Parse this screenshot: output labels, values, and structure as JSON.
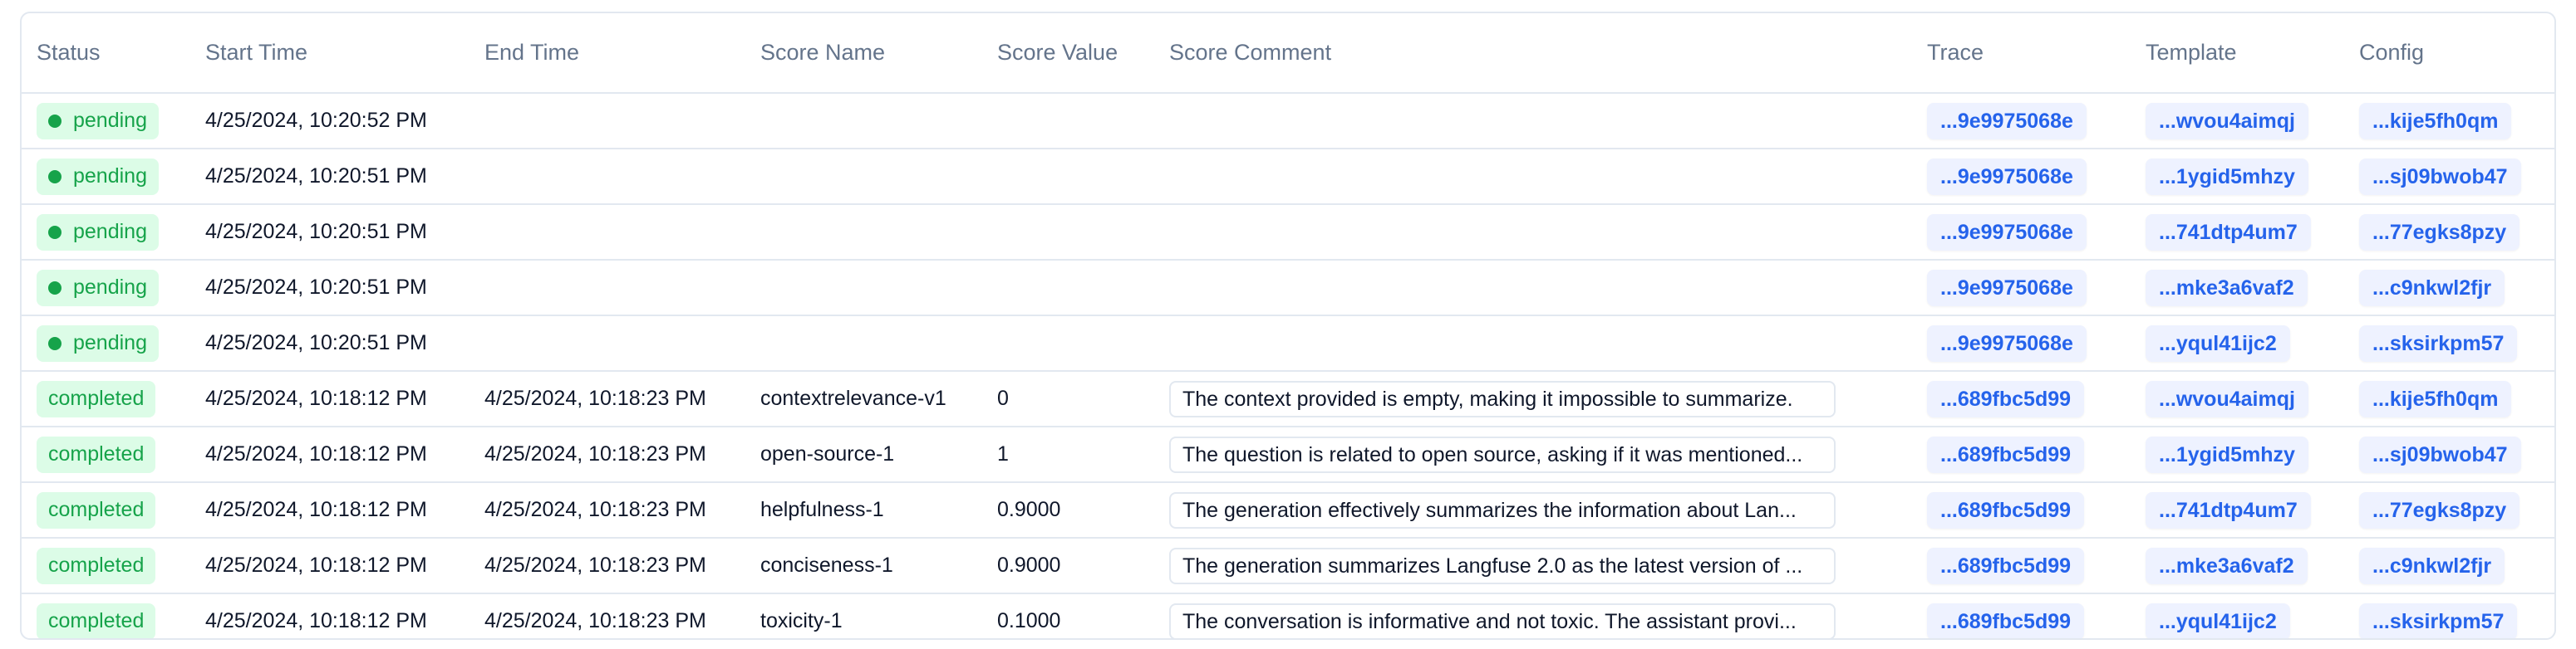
{
  "columns": [
    "Status",
    "Start Time",
    "End Time",
    "Score Name",
    "Score Value",
    "Score Comment",
    "Trace",
    "Template",
    "Config"
  ],
  "colors": {
    "status_green": "#16a34a",
    "badge_bg": "#dcfce7",
    "link_blue": "#2563eb",
    "link_bg": "#eef2ff"
  },
  "rows": [
    {
      "status": "pending",
      "start": "4/25/2024, 10:20:52 PM",
      "end": "",
      "score_name": "",
      "score_value": "",
      "comment": "",
      "trace": "...9e9975068e",
      "template": "...wvou4aimqj",
      "config": "...kije5fh0qm"
    },
    {
      "status": "pending",
      "start": "4/25/2024, 10:20:51 PM",
      "end": "",
      "score_name": "",
      "score_value": "",
      "comment": "",
      "trace": "...9e9975068e",
      "template": "...1ygid5mhzy",
      "config": "...sj09bwob47"
    },
    {
      "status": "pending",
      "start": "4/25/2024, 10:20:51 PM",
      "end": "",
      "score_name": "",
      "score_value": "",
      "comment": "",
      "trace": "...9e9975068e",
      "template": "...741dtp4um7",
      "config": "...77egks8pzy"
    },
    {
      "status": "pending",
      "start": "4/25/2024, 10:20:51 PM",
      "end": "",
      "score_name": "",
      "score_value": "",
      "comment": "",
      "trace": "...9e9975068e",
      "template": "...mke3a6vaf2",
      "config": "...c9nkwl2fjr"
    },
    {
      "status": "pending",
      "start": "4/25/2024, 10:20:51 PM",
      "end": "",
      "score_name": "",
      "score_value": "",
      "comment": "",
      "trace": "...9e9975068e",
      "template": "...yqul41ijc2",
      "config": "...sksirkpm57"
    },
    {
      "status": "completed",
      "start": "4/25/2024, 10:18:12 PM",
      "end": "4/25/2024, 10:18:23 PM",
      "score_name": "contextrelevance-v1",
      "score_value": "0",
      "comment": "The context provided is empty, making it impossible to summarize.",
      "trace": "...689fbc5d99",
      "template": "...wvou4aimqj",
      "config": "...kije5fh0qm"
    },
    {
      "status": "completed",
      "start": "4/25/2024, 10:18:12 PM",
      "end": "4/25/2024, 10:18:23 PM",
      "score_name": "open-source-1",
      "score_value": "1",
      "comment": "The question is related to open source, asking if it was mentioned...",
      "trace": "...689fbc5d99",
      "template": "...1ygid5mhzy",
      "config": "...sj09bwob47"
    },
    {
      "status": "completed",
      "start": "4/25/2024, 10:18:12 PM",
      "end": "4/25/2024, 10:18:23 PM",
      "score_name": "helpfulness-1",
      "score_value": "0.9000",
      "comment": "The generation effectively summarizes the information about Lan...",
      "trace": "...689fbc5d99",
      "template": "...741dtp4um7",
      "config": "...77egks8pzy"
    },
    {
      "status": "completed",
      "start": "4/25/2024, 10:18:12 PM",
      "end": "4/25/2024, 10:18:23 PM",
      "score_name": "conciseness-1",
      "score_value": "0.9000",
      "comment": "The generation summarizes Langfuse 2.0 as the latest version of ...",
      "trace": "...689fbc5d99",
      "template": "...mke3a6vaf2",
      "config": "...c9nkwl2fjr"
    },
    {
      "status": "completed",
      "start": "4/25/2024, 10:18:12 PM",
      "end": "4/25/2024, 10:18:23 PM",
      "score_name": "toxicity-1",
      "score_value": "0.1000",
      "comment": "The conversation is informative and not toxic. The assistant provi...",
      "trace": "...689fbc5d99",
      "template": "...yqul41ijc2",
      "config": "...sksirkpm57"
    }
  ]
}
